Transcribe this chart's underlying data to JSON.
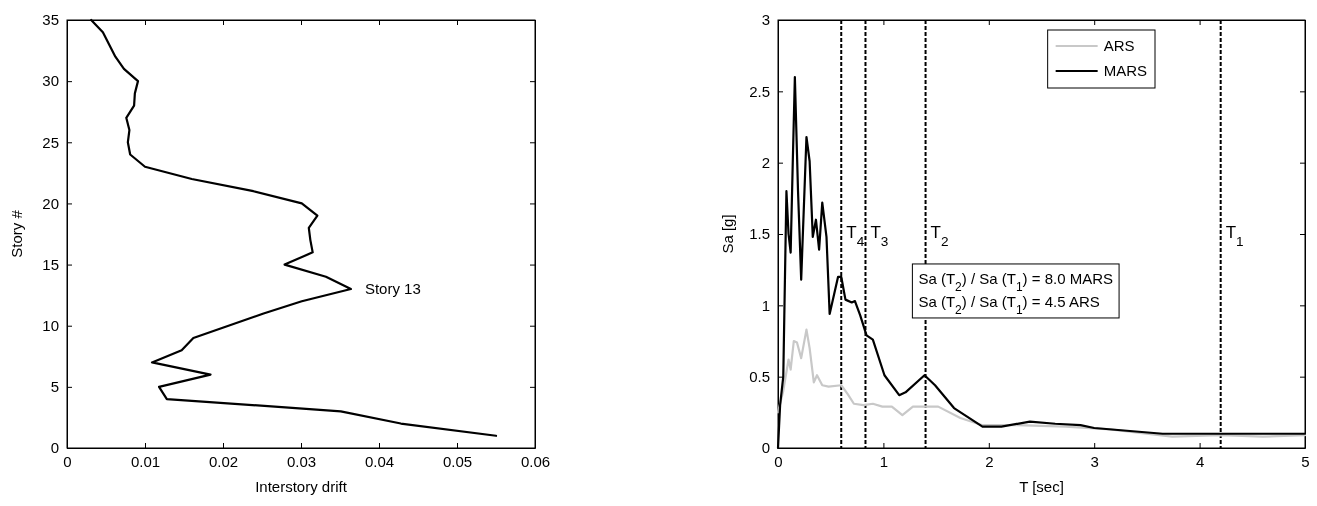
{
  "chart_data": [
    {
      "type": "line",
      "xlabel": "Interstory drift",
      "ylabel": "Story #",
      "xlim": [
        0,
        0.06
      ],
      "xticks": [
        0,
        0.01,
        0.02,
        0.03,
        0.04,
        0.05,
        0.06
      ],
      "ylim": [
        0,
        35
      ],
      "yticks": [
        0,
        5,
        10,
        15,
        20,
        25,
        30,
        35
      ],
      "grid": false,
      "legend": false,
      "series": [
        {
          "color": "#000000",
          "x": [
            0.0031,
            0.0046,
            0.0054,
            0.0062,
            0.0073,
            0.0091,
            0.0087,
            0.0086,
            0.0076,
            0.008,
            0.0078,
            0.0081,
            0.01,
            0.016,
            0.0239,
            0.0301,
            0.0321,
            0.031,
            0.0312,
            0.0315,
            0.0279,
            0.0332,
            0.0364,
            0.0301,
            0.0252,
            0.0207,
            0.0162,
            0.0147,
            0.0109,
            0.0184,
            0.0118,
            0.0128,
            0.0351,
            0.0428,
            0.055
          ],
          "values": [
            35,
            34,
            33,
            32,
            31,
            30,
            29,
            28,
            27,
            26,
            25,
            24,
            23,
            22,
            21,
            20,
            19,
            18,
            17,
            16,
            15,
            14,
            13,
            12,
            11,
            10,
            9,
            8,
            7,
            6,
            5,
            4,
            3,
            2,
            1
          ]
        }
      ],
      "annotations": [
        {
          "text": "Story 13",
          "x": 0.0364,
          "y": 13
        }
      ]
    },
    {
      "type": "line",
      "xlabel": "T [sec]",
      "ylabel": "Sa [g]",
      "xlim": [
        0,
        5
      ],
      "xticks": [
        0,
        1,
        2,
        3,
        4,
        5
      ],
      "ylim": [
        0,
        3
      ],
      "yticks": [
        0,
        0.5,
        1,
        1.5,
        2,
        2.5,
        3
      ],
      "grid": false,
      "legend": "top right",
      "series": [
        {
          "name": "ARS",
          "color": "#c8c8c8",
          "x": [
            0,
            0.05,
            0.1,
            0.12,
            0.15,
            0.18,
            0.22,
            0.27,
            0.3,
            0.34,
            0.37,
            0.42,
            0.48,
            0.6,
            0.66,
            0.72,
            0.81,
            0.9,
            0.99,
            1.08,
            1.18,
            1.28,
            1.52,
            1.73,
            1.94,
            2.27,
            2.73,
            3.15,
            3.74,
            4.2,
            4.6,
            5
          ],
          "values": [
            0.25,
            0.4,
            0.62,
            0.55,
            0.75,
            0.74,
            0.63,
            0.83,
            0.7,
            0.46,
            0.51,
            0.44,
            0.43,
            0.44,
            0.38,
            0.31,
            0.3,
            0.31,
            0.29,
            0.29,
            0.23,
            0.29,
            0.29,
            0.21,
            0.16,
            0.16,
            0.15,
            0.13,
            0.08,
            0.09,
            0.08,
            0.09
          ]
        },
        {
          "name": "MARS",
          "color": "#000000",
          "x": [
            0,
            0.02,
            0.05,
            0.08,
            0.1,
            0.12,
            0.14,
            0.16,
            0.19,
            0.22,
            0.27,
            0.3,
            0.33,
            0.36,
            0.39,
            0.42,
            0.46,
            0.49,
            0.57,
            0.6,
            0.64,
            0.7,
            0.73,
            0.78,
            0.84,
            0.9,
            1.01,
            1.15,
            1.21,
            1.39,
            1.49,
            1.67,
            1.94,
            2.12,
            2.39,
            2.63,
            2.87,
            3.0,
            3.65,
            4.2,
            5
          ],
          "values": [
            0,
            0.3,
            0.5,
            1.8,
            1.5,
            1.37,
            2.0,
            2.6,
            1.8,
            1.18,
            2.18,
            2.01,
            1.48,
            1.6,
            1.39,
            1.72,
            1.48,
            0.94,
            1.2,
            1.2,
            1.04,
            1.02,
            1.03,
            0.93,
            0.79,
            0.76,
            0.51,
            0.37,
            0.39,
            0.51,
            0.44,
            0.28,
            0.15,
            0.15,
            0.185,
            0.17,
            0.16,
            0.14,
            0.1,
            0.1,
            0.1
          ]
        }
      ],
      "ref_lines": [
        {
          "axis": "x",
          "value": 0.6,
          "label": "T$_{4}$",
          "color": "#000000",
          "line_style": "dashed"
        },
        {
          "axis": "x",
          "value": 0.83,
          "label": "T$_{3}$",
          "color": "#000000",
          "line_style": "dashed"
        },
        {
          "axis": "x",
          "value": 1.4,
          "label": "T$_{2}$",
          "color": "#000000",
          "line_style": "dashed"
        },
        {
          "axis": "x",
          "value": 4.2,
          "label": "T$_{1}$",
          "color": "#000000",
          "line_style": "dashed"
        }
      ],
      "annotations": [
        "Sa (T$_{2}$) / Sa (T$_{1}$) = 8.0 MARS",
        "Sa (T$_{2}$) / Sa (T$_{1}$) = 4.5 ARS"
      ]
    }
  ]
}
